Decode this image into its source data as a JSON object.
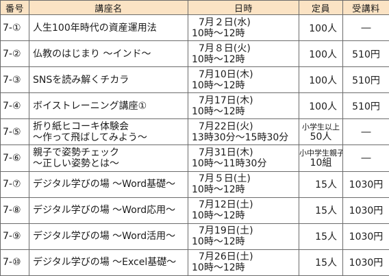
{
  "headers": {
    "no": "番号",
    "name": "講座名",
    "date": "日時",
    "capacity": "定員",
    "fee": "受講料"
  },
  "rows": [
    {
      "no": "7-①",
      "name1": "人生100年時代の資産運用法",
      "name2": "",
      "date1": "7月２日(水)",
      "date2": "10時〜12時",
      "cap1": "100人",
      "cap2": "",
      "fee": "―"
    },
    {
      "no": "7-②",
      "name1": "仏教のはじまり 〜インド〜",
      "name2": "",
      "date1": "7月８日(火)",
      "date2": "10時〜12時",
      "cap1": "100人",
      "cap2": "",
      "fee": "510円"
    },
    {
      "no": "7-③",
      "name1": "SNSを読み解くチカラ",
      "name2": "",
      "date1": "7月10日(木)",
      "date2": "10時〜12時",
      "cap1": "100人",
      "cap2": "",
      "fee": "510円"
    },
    {
      "no": "7-④",
      "name1": "ボイストレーニング講座①",
      "name2": "",
      "date1": "7月17日(木)",
      "date2": "10時〜12時",
      "cap1": "100人",
      "cap2": "",
      "fee": "510円"
    },
    {
      "no": "7-⑤",
      "name1": "折り紙ヒコーキ体験会",
      "name2": "〜作って飛ばしてみよう〜",
      "date1": "7月22日(火)",
      "date2": "13時30分〜15時30分",
      "cap1": "小学生以上",
      "cap2": "50人",
      "fee": "―"
    },
    {
      "no": "7-⑥",
      "name1": "親子で姿勢チェック",
      "name2": "〜正しい姿勢とは〜",
      "date1": "7月31日(木)",
      "date2": "10時〜11時30分",
      "cap1": "小中学生親子",
      "cap2": "10組",
      "fee": "―"
    },
    {
      "no": "7-⑦",
      "name1": "デジタル学びの場 〜Word基礎〜",
      "name2": "",
      "date1": "7月５日(土)",
      "date2": "10時〜12時",
      "cap1": "15人",
      "cap2": "",
      "fee": "1030円"
    },
    {
      "no": "7-⑧",
      "name1": "デジタル学びの場 〜Word応用〜",
      "name2": "",
      "date1": "7月12日(土)",
      "date2": "10時〜12時",
      "cap1": "15人",
      "cap2": "",
      "fee": "1030円"
    },
    {
      "no": "7-⑨",
      "name1": "デジタル学びの場 〜Word活用〜",
      "name2": "",
      "date1": "7月19日(土)",
      "date2": "10時〜12時",
      "cap1": "15人",
      "cap2": "",
      "fee": "1030円"
    },
    {
      "no": "7-⑩",
      "name1": "デジタル学びの場 〜Excel基礎〜",
      "name2": "",
      "date1": "7月26日(土)",
      "date2": "10時〜12時",
      "cap1": "15人",
      "cap2": "",
      "fee": "1030円"
    }
  ],
  "colors": {
    "header_bg": "#fbe3c4",
    "border": "#6b6b6b",
    "text": "#1a1a1a"
  }
}
